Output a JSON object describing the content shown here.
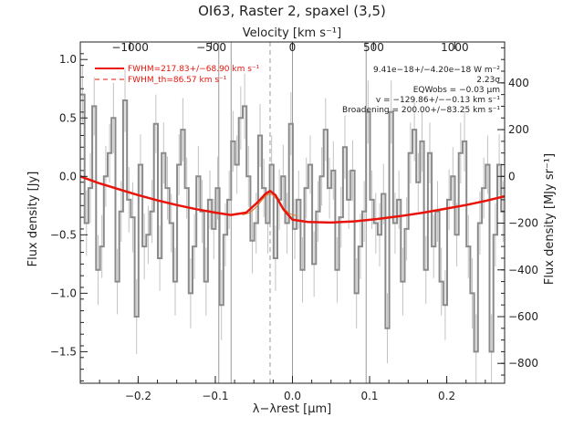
{
  "chart_data": {
    "type": "line",
    "title": "OI63, Raster 2, spaxel (3,5)",
    "xlabel": "λ−λrest [μm]",
    "ylabel": "Flux density [Jy]",
    "y2label": "Flux density [MJy sr⁻¹]",
    "top_axis_label": "Velocity [km s⁻¹]",
    "xlim": [
      -0.275,
      0.275
    ],
    "ylim": [
      -1.77,
      1.15
    ],
    "y2lim": [
      -885,
      575
    ],
    "x_ticks": [
      -0.2,
      -0.1,
      0.0,
      0.1,
      0.2
    ],
    "x_tick_labels": [
      "−0.2",
      "−0.1",
      "0.0",
      "0.1",
      "0.2"
    ],
    "y_ticks": [
      -1.5,
      -1.0,
      -0.5,
      0.0,
      0.5,
      1.0
    ],
    "y_tick_labels": [
      "−1.5",
      "−1.0",
      "−0.5",
      "0.0",
      "0.5",
      "1.0"
    ],
    "y2_ticks": [
      -800,
      -600,
      -400,
      -200,
      0,
      200,
      400
    ],
    "y2_tick_labels": [
      "−800",
      "−600",
      "−400",
      "−200",
      "0",
      "200",
      "400"
    ],
    "top_ticks": [
      -1000,
      -500,
      0,
      500,
      1000
    ],
    "top_tick_labels": [
      "−1000",
      "−500",
      "0",
      "500",
      "1000"
    ],
    "top_tick_positions_x": [
      -0.2104,
      -0.1052,
      0.0,
      0.1052,
      0.2104
    ],
    "vertical_lines_x": [
      -0.0955,
      -0.0795,
      0.0,
      0.0955
    ],
    "line_center_x": -0.029,
    "legend": {
      "position": "top-left",
      "fit_label": "FWHM=217.83+/−68.90 km s⁻¹",
      "theory_label": "FWHM_th=86.57 km s⁻¹"
    },
    "annotations": [
      "9.41e−18+/−4.20e−18 W m⁻²",
      "2.23σ",
      "EQWobs = −0.03 μm",
      "v = −129.86+/−−0.13 km s⁻¹",
      "Broadening = 200.00+/−83.25 km s⁻¹"
    ],
    "series": [
      {
        "kind": "data",
        "color": "#8a8a8a",
        "x": [
          -0.272,
          -0.267,
          -0.262,
          -0.257,
          -0.252,
          -0.247,
          -0.242,
          -0.237,
          -0.232,
          -0.227,
          -0.222,
          -0.217,
          -0.212,
          -0.207,
          -0.202,
          -0.197,
          -0.192,
          -0.187,
          -0.182,
          -0.177,
          -0.172,
          -0.167,
          -0.162,
          -0.157,
          -0.152,
          -0.147,
          -0.142,
          -0.137,
          -0.132,
          -0.127,
          -0.122,
          -0.117,
          -0.112,
          -0.107,
          -0.102,
          -0.097,
          -0.092,
          -0.087,
          -0.082,
          -0.077,
          -0.072,
          -0.067,
          -0.062,
          -0.057,
          -0.052,
          -0.047,
          -0.042,
          -0.037,
          -0.032,
          -0.027,
          -0.022,
          -0.017,
          -0.012,
          -0.007,
          -0.002,
          0.003,
          0.008,
          0.013,
          0.018,
          0.023,
          0.028,
          0.033,
          0.038,
          0.043,
          0.048,
          0.053,
          0.058,
          0.063,
          0.068,
          0.073,
          0.078,
          0.083,
          0.088,
          0.093,
          0.098,
          0.103,
          0.108,
          0.113,
          0.118,
          0.123,
          0.128,
          0.133,
          0.138,
          0.143,
          0.148,
          0.153,
          0.158,
          0.163,
          0.168,
          0.173,
          0.178,
          0.183,
          0.188,
          0.193,
          0.198,
          0.203,
          0.208,
          0.213,
          0.218,
          0.223,
          0.228,
          0.233,
          0.238,
          0.243,
          0.248,
          0.253,
          0.258,
          0.263,
          0.268,
          0.273
        ],
        "values": [
          0.7,
          -0.4,
          -0.1,
          0.6,
          -0.8,
          -0.6,
          0.0,
          0.2,
          0.5,
          -0.9,
          -0.3,
          0.65,
          -0.2,
          -0.35,
          -1.2,
          0.1,
          -0.6,
          -0.5,
          -0.3,
          0.45,
          -0.7,
          0.2,
          -0.1,
          -0.4,
          -0.9,
          0.1,
          0.4,
          -0.1,
          -1.0,
          -0.6,
          0.0,
          -0.3,
          -0.9,
          -0.2,
          -0.45,
          -0.1,
          -1.1,
          -0.5,
          -0.2,
          0.3,
          0.1,
          0.5,
          0.6,
          0.0,
          -0.55,
          -0.4,
          0.35,
          -0.1,
          -0.4,
          0.1,
          -0.7,
          -0.2,
          0.0,
          -0.4,
          0.45,
          -0.45,
          -0.2,
          -0.8,
          -0.1,
          0.1,
          -0.75,
          -0.3,
          0.0,
          0.4,
          -0.1,
          0.05,
          -0.8,
          -0.35,
          0.25,
          -0.2,
          0.05,
          -1.0,
          -0.6,
          -0.3,
          0.55,
          -0.2,
          -0.4,
          -0.5,
          -0.15,
          -1.3,
          0.55,
          -0.4,
          -0.2,
          -0.9,
          -0.45,
          0.2,
          0.4,
          -0.05,
          0.3,
          -0.8,
          0.2,
          -0.6,
          -0.3,
          -0.9,
          -1.1,
          -0.2,
          0.0,
          -0.5,
          0.2,
          0.3,
          -0.6,
          -1.0,
          -1.5,
          -0.4,
          -0.1,
          0.1,
          -1.5,
          -0.5,
          0.1,
          -0.3
        ],
        "errors": [
          0.25,
          0.28,
          0.3,
          0.25,
          0.3,
          0.27,
          0.26,
          0.25,
          0.3,
          0.28,
          0.26,
          0.27,
          0.28,
          0.3,
          0.32,
          0.26,
          0.28,
          0.25,
          0.27,
          0.25,
          0.28,
          0.26,
          0.27,
          0.25,
          0.29,
          0.26,
          0.27,
          0.26,
          0.3,
          0.28,
          0.26,
          0.27,
          0.29,
          0.25,
          0.26,
          0.27,
          0.3,
          0.27,
          0.25,
          0.26,
          0.25,
          0.27,
          0.28,
          0.26,
          0.28,
          0.26,
          0.27,
          0.25,
          0.26,
          0.25,
          0.28,
          0.26,
          0.27,
          0.26,
          0.27,
          0.26,
          0.25,
          0.28,
          0.26,
          0.25,
          0.28,
          0.26,
          0.25,
          0.27,
          0.26,
          0.25,
          0.28,
          0.26,
          0.27,
          0.25,
          0.26,
          0.3,
          0.28,
          0.26,
          0.27,
          0.25,
          0.26,
          0.27,
          0.26,
          0.3,
          0.27,
          0.26,
          0.25,
          0.29,
          0.27,
          0.26,
          0.27,
          0.25,
          0.26,
          0.29,
          0.26,
          0.27,
          0.26,
          0.29,
          0.3,
          0.26,
          0.25,
          0.27,
          0.26,
          0.26,
          0.27,
          0.3,
          0.32,
          0.27,
          0.26,
          0.25,
          0.32,
          0.27,
          0.26,
          0.26
        ]
      },
      {
        "kind": "fit",
        "color": "#e8140b",
        "x": [
          -0.275,
          -0.25,
          -0.225,
          -0.2,
          -0.175,
          -0.15,
          -0.125,
          -0.1,
          -0.08,
          -0.06,
          -0.045,
          -0.035,
          -0.029,
          -0.022,
          -0.012,
          0.0,
          0.02,
          0.05,
          0.08,
          0.11,
          0.14,
          0.17,
          0.2,
          0.225,
          0.25,
          0.275
        ],
        "values": [
          0.0,
          -0.06,
          -0.11,
          -0.16,
          -0.205,
          -0.245,
          -0.28,
          -0.31,
          -0.33,
          -0.31,
          -0.22,
          -0.15,
          -0.125,
          -0.16,
          -0.28,
          -0.37,
          -0.39,
          -0.395,
          -0.385,
          -0.365,
          -0.34,
          -0.31,
          -0.275,
          -0.245,
          -0.21,
          -0.17
        ]
      },
      {
        "kind": "component",
        "color": "#e07b28",
        "x": [
          -0.065,
          -0.055,
          -0.045,
          -0.038,
          -0.033,
          -0.029,
          -0.025,
          -0.02,
          -0.013,
          -0.003,
          0.007
        ],
        "values": [
          -0.33,
          -0.31,
          -0.25,
          -0.19,
          -0.16,
          -0.15,
          -0.16,
          -0.2,
          -0.27,
          -0.32,
          -0.34
        ]
      }
    ]
  }
}
